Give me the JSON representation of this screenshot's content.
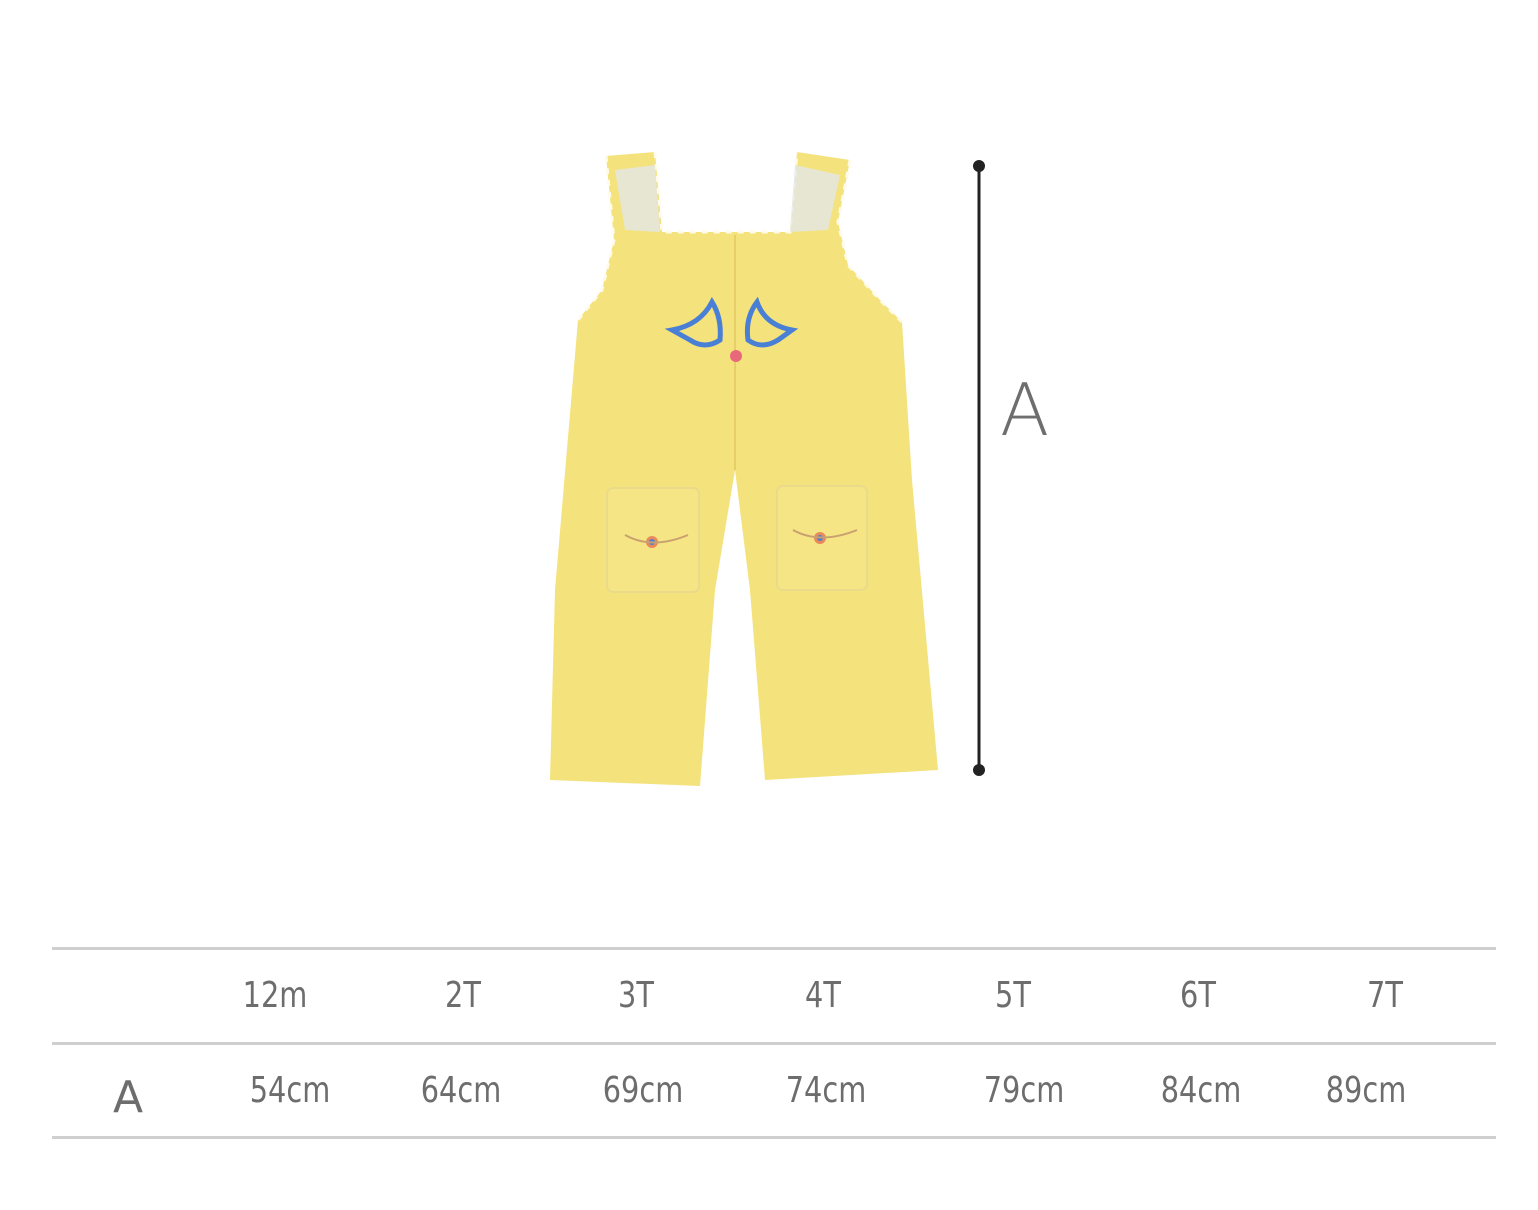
{
  "colors": {
    "garment": "#f4e27c",
    "garment_shadow": "#e9d268",
    "stitch": "#fffbea",
    "embroidery_blue": "#4a7fd6",
    "line": "#222222",
    "rule": "#cfcfcf",
    "text": "#6d6d6d"
  },
  "diagram": {
    "dimension_label": "A"
  },
  "size_table": {
    "headers": [
      "12m",
      "2T",
      "3T",
      "4T",
      "5T",
      "6T",
      "7T"
    ],
    "rows": [
      {
        "label": "A",
        "values": [
          "54cm",
          "64cm",
          "69cm",
          "74cm",
          "79cm",
          "84cm",
          "89cm"
        ]
      }
    ]
  }
}
